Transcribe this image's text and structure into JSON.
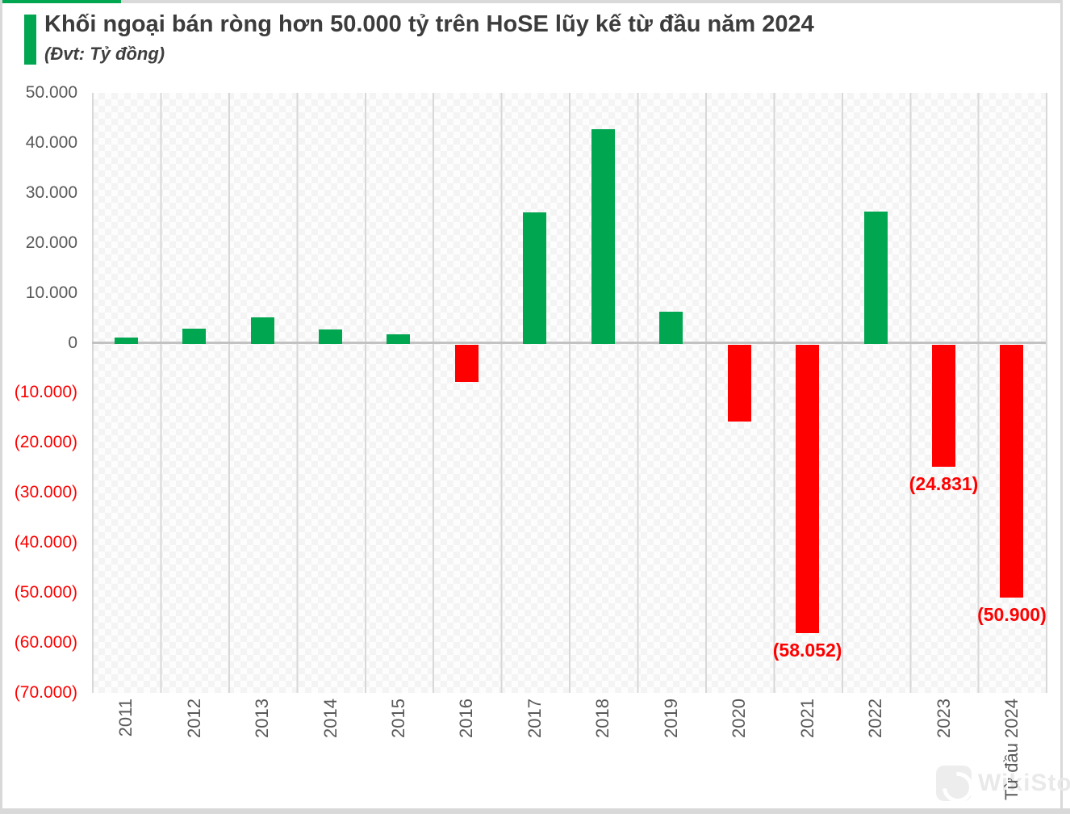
{
  "header": {
    "title": "Khối ngoại bán ròng hơn 50.000 tỷ trên HoSE lũy kế từ đầu năm 2024",
    "subtitle": "(Đvt: Tỷ đồng)"
  },
  "chart_data": {
    "type": "bar",
    "title": "Khối ngoại bán ròng hơn 50.000 tỷ trên HoSE lũy kế từ đầu năm 2024",
    "unit_note": "(Đvt: Tỷ đồng)",
    "xlabel": "",
    "ylabel": "Tỷ đồng",
    "categories": [
      "2011",
      "2012",
      "2013",
      "2014",
      "2015",
      "2016",
      "2017",
      "2018",
      "2019",
      "2020",
      "2021",
      "2022",
      "2023",
      "Từ đầu 2024"
    ],
    "values": [
      1300,
      3000,
      5300,
      2900,
      1900,
      -7900,
      26300,
      43000,
      6400,
      -15700,
      -58052,
      26500,
      -24831,
      -50900
    ],
    "point_labels": [
      "",
      "",
      "",
      "",
      "",
      "",
      "",
      "",
      "",
      "",
      "(58.052)",
      "",
      "(24.831)",
      "(50.900)"
    ],
    "y_ticks": [
      "50.000",
      "40.000",
      "30.000",
      "20.000",
      "10.000",
      "0",
      "(10.000)",
      "(20.000)",
      "(30.000)",
      "(40.000)",
      "(50.000)",
      "(60.000)",
      "(70.000)"
    ],
    "ylim": [
      -70000,
      50000
    ],
    "grid": "vertical-only",
    "legend": "none",
    "colors": {
      "positive": "#00a650",
      "negative": "#ff0000",
      "accent": "#00a650",
      "axis_text": "#595959",
      "negative_text": "#ff0000",
      "gridline": "#d8d8d8"
    }
  },
  "watermark": {
    "text": "WikiStock"
  }
}
